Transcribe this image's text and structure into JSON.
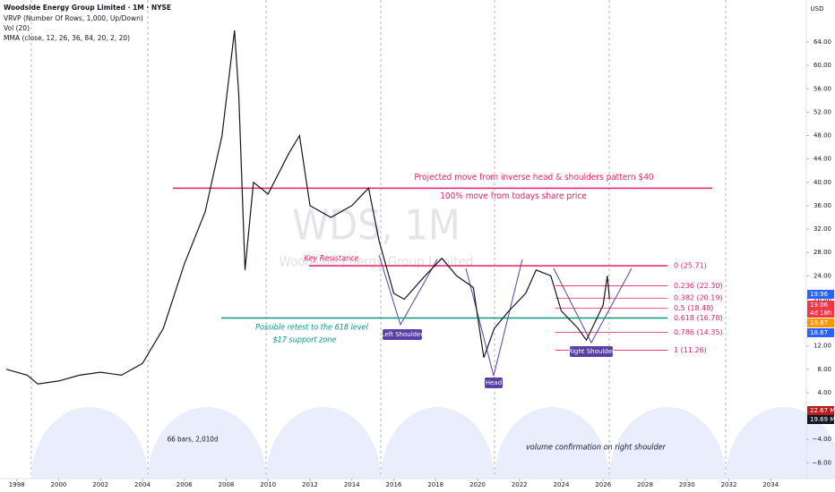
{
  "chart_data": {
    "type": "line",
    "title": "Woodside Energy Group Limited · 1M · NYSE",
    "indicators": [
      "VRVP (Number Of Rows, 1,000, Up/Down)",
      "Vol (20)",
      "MMA (close, 12, 26, 36, 84, 20, 2, 20)"
    ],
    "currency": "USD",
    "watermark": "WDS, 1M",
    "watermark_name": "Woodside Energy Group Limited",
    "x": [
      1997.5,
      1998.5,
      1999,
      2000,
      2001,
      2002,
      2003,
      2004,
      2005,
      2006,
      2007,
      2007.8,
      2008.4,
      2008.6,
      2008.9,
      2009.3,
      2010,
      2011,
      2011.5,
      2012,
      2013,
      2014,
      2014.8,
      2015.3,
      2016,
      2016.5,
      2017.5,
      2018.3,
      2019,
      2019.8,
      2020.3,
      2020.8,
      2021.5,
      2022.3,
      2022.8,
      2023.5,
      2024,
      2024.8,
      2025.2,
      2025.6,
      2026,
      2026.2,
      2026.3
    ],
    "series": [
      {
        "name": "WDS",
        "color": "#131722",
        "values": [
          8,
          7,
          5.5,
          6,
          7,
          7.5,
          7,
          9,
          15,
          26,
          35,
          48,
          66,
          55,
          25,
          40,
          38,
          45,
          48,
          36,
          34,
          36,
          39,
          30,
          21,
          20,
          24,
          27,
          24,
          22,
          10,
          15,
          18,
          21,
          25,
          24,
          18,
          15,
          13,
          16,
          19,
          24,
          19.96
        ]
      }
    ],
    "xlim": [
      1997.2,
      2035.7
    ],
    "xticks": [
      1998,
      2000,
      2002,
      2004,
      2006,
      2008,
      2010,
      2012,
      2014,
      2016,
      2018,
      2020,
      2022,
      2024,
      2026,
      2028,
      2030,
      2032,
      2034
    ],
    "ylim": [
      -10.7,
      71.2
    ],
    "yticks": [
      {
        "value": 64,
        "label": "64.00"
      },
      {
        "value": 60,
        "label": "60.00"
      },
      {
        "value": 56,
        "label": "56.00"
      },
      {
        "value": 52,
        "label": "52.00"
      },
      {
        "value": 48,
        "label": "48.00"
      },
      {
        "value": 44,
        "label": "44.00"
      },
      {
        "value": 40,
        "label": "40.00"
      },
      {
        "value": 36,
        "label": "36.00"
      },
      {
        "value": 32,
        "label": "32.00"
      },
      {
        "value": 28,
        "label": "28.00"
      },
      {
        "value": 24,
        "label": "24.00"
      },
      {
        "value": 20,
        "label": "20.00"
      },
      {
        "value": 16,
        "label": "16.00"
      },
      {
        "value": 12,
        "label": "12.00"
      },
      {
        "value": 8,
        "label": "8.00"
      },
      {
        "value": 4,
        "label": "4.00"
      },
      {
        "value": -4,
        "label": "−4.00"
      },
      {
        "value": -8,
        "label": "−8.00"
      }
    ],
    "fib_levels": [
      {
        "value": 25.71,
        "label": "0 (25.71)"
      },
      {
        "value": 22.3,
        "label": "0.236 (22.30)"
      },
      {
        "value": 20.19,
        "label": "0.382 (20.19)"
      },
      {
        "value": 18.48,
        "label": "0.5 (18.48)"
      },
      {
        "value": 16.78,
        "label": "0.618 (16.78)"
      },
      {
        "value": 14.35,
        "label": "0.786 (14.35)"
      },
      {
        "value": 11.26,
        "label": "1 (11.26)"
      }
    ],
    "projection_line": {
      "value": 39,
      "color": "#e91e63"
    },
    "annotations": [
      "Projected move from inverse head & shoulders pattern $40",
      "100% move from todays share price",
      "Key Resistance",
      "Possible retest to the 618 level",
      "$17 support zone",
      "66 bars, 2,010d",
      "volume confirmation on right shoulder"
    ],
    "pattern_labels": [
      "Left Shoulder",
      "Head",
      "Right Shoulder"
    ],
    "price_badges": [
      "19.96",
      "19.06",
      "4d 18h",
      "18.67",
      "18.67"
    ],
    "volume_badges": [
      "22.67 M",
      "19.69 M"
    ]
  }
}
